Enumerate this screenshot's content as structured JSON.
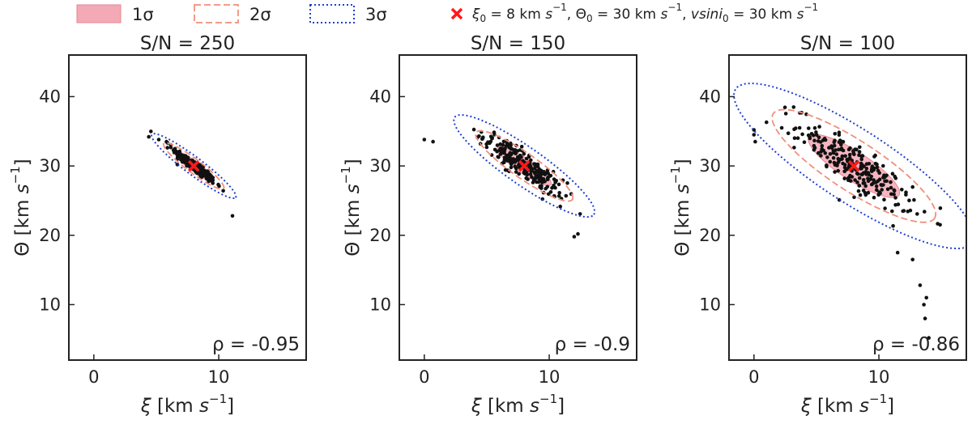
{
  "legend": {
    "one_sigma": "1σ",
    "two_sigma": "2σ",
    "three_sigma": "3σ",
    "truth": {
      "xi_sym": "ξ",
      "xi_sub": "0",
      "xi_text": " = 8 km ",
      "theta_sym": "Θ",
      "theta_sub": "0",
      "theta_text": " = 30 km ",
      "vsini_sym": "vsini",
      "vsini_sub": "0",
      "vsini_text": " = 30 km ",
      "unit_s": "s",
      "unit_exp": "−1",
      "sep": ", "
    },
    "colors": {
      "one_sigma_fill": "#f3a9b6",
      "one_sigma_edge": "#e8868f",
      "two_sigma": "#f08f7b",
      "three_sigma": "#1f3fd0",
      "truth": "#ff1a1a",
      "points": "#111111"
    }
  },
  "axis_labels": {
    "x_sym": "ξ",
    "x_unit": " [km ",
    "y_sym": "Θ",
    "y_unit": " [km ",
    "unit_s": "s",
    "unit_exp": "−1",
    "close": "]"
  },
  "chart_data": [
    {
      "type": "scatter",
      "title": "S/N = 250",
      "xlim": [
        -2,
        17
      ],
      "ylim": [
        2,
        46
      ],
      "xticks": [
        0,
        10
      ],
      "yticks": [
        10,
        20,
        30,
        40
      ],
      "truth": {
        "x": 8,
        "y": 30
      },
      "rho_label": "ρ = -0.95",
      "ellipses": [
        {
          "sigma": 1,
          "cx": 8,
          "cy": 30,
          "a": 1.9,
          "b": 0.4,
          "angle": -37
        },
        {
          "sigma": 2,
          "cx": 8,
          "cy": 30,
          "a": 3.0,
          "b": 0.55,
          "angle": -37
        },
        {
          "sigma": 3,
          "cx": 8,
          "cy": 30,
          "a": 4.2,
          "b": 0.7,
          "angle": -37
        }
      ],
      "points": {
        "n": 260,
        "sx": 0.85,
        "sy": 1.25,
        "rho": -0.95,
        "outliers": [
          [
            4.4,
            34.2
          ],
          [
            11.1,
            22.8
          ],
          [
            5.2,
            33.8
          ]
        ]
      }
    },
    {
      "type": "scatter",
      "title": "S/N = 150",
      "xlim": [
        -2,
        17
      ],
      "ylim": [
        2,
        46
      ],
      "xticks": [
        0,
        10
      ],
      "yticks": [
        10,
        20,
        30,
        40
      ],
      "truth": {
        "x": 8,
        "y": 30
      },
      "rho_label": "ρ = -0.9",
      "ellipses": [
        {
          "sigma": 1,
          "cx": 8,
          "cy": 30,
          "a": 2.6,
          "b": 0.6,
          "angle": -35
        },
        {
          "sigma": 2,
          "cx": 8,
          "cy": 30,
          "a": 4.7,
          "b": 1.0,
          "angle": -35
        },
        {
          "sigma": 3,
          "cx": 8,
          "cy": 30,
          "a": 6.8,
          "b": 1.5,
          "angle": -35
        }
      ],
      "points": {
        "n": 240,
        "sx": 1.6,
        "sy": 2.3,
        "rho": -0.9,
        "outliers": [
          [
            0,
            33.8
          ],
          [
            0.7,
            33.5
          ],
          [
            12.0,
            19.8
          ],
          [
            12.3,
            20.2
          ],
          [
            4.5,
            33.2
          ]
        ]
      }
    },
    {
      "type": "scatter",
      "title": "S/N = 100",
      "xlim": [
        -2,
        17
      ],
      "ylim": [
        2,
        46
      ],
      "xticks": [
        0,
        10
      ],
      "yticks": [
        10,
        20,
        30,
        40
      ],
      "truth": {
        "x": 8,
        "y": 30
      },
      "rho_label": "ρ = -0.86",
      "ellipses": [
        {
          "sigma": 1,
          "cx": 8,
          "cy": 30,
          "a": 4.3,
          "b": 1.15,
          "angle": -33
        },
        {
          "sigma": 2,
          "cx": 8,
          "cy": 30,
          "a": 7.7,
          "b": 2.0,
          "angle": -33
        },
        {
          "sigma": 3,
          "cx": 8,
          "cy": 30,
          "a": 11.3,
          "b": 2.9,
          "angle": -33
        }
      ],
      "points": {
        "n": 240,
        "sx": 2.3,
        "sy": 3.2,
        "rho": -0.86,
        "outliers": [
          [
            0,
            35.2
          ],
          [
            0,
            34.5
          ],
          [
            0.1,
            33.5
          ],
          [
            1.0,
            36.3
          ],
          [
            13.3,
            12.8
          ],
          [
            13.6,
            10.0
          ],
          [
            13.7,
            8.0
          ],
          [
            14.0,
            5.2
          ],
          [
            13.8,
            11.0
          ],
          [
            12.7,
            16.5
          ],
          [
            11.5,
            17.5
          ]
        ]
      }
    }
  ]
}
